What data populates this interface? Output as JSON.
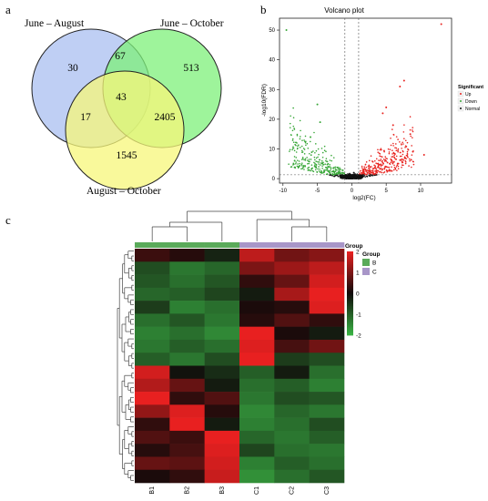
{
  "panels": {
    "a": "a",
    "b": "b",
    "c": "c"
  },
  "venn": {
    "sets": [
      {
        "label": "June – August",
        "color": "#a9bff0"
      },
      {
        "label": "June – October",
        "color": "#7ef07a"
      },
      {
        "label": "August – October",
        "color": "#f7f77a"
      }
    ],
    "regions": {
      "only_A": "30",
      "AB": "67",
      "only_B": "513",
      "ABC": "43",
      "AC": "17",
      "BC": "2405",
      "only_C": "1545"
    }
  },
  "volcano": {
    "title": "Volcano plot",
    "xlabel": "log2(FC)",
    "ylabel": "-log10(FDR)",
    "legend_title": "Significant",
    "legend_items": [
      {
        "label": "Up",
        "color": "#e8231f"
      },
      {
        "label": "Down",
        "color": "#37a637"
      },
      {
        "label": "Normal",
        "color": "#111111"
      }
    ]
  },
  "heatmap": {
    "group_legend_title": "Group",
    "group_legend_items": [
      {
        "label": "B",
        "color": "#5aaa5a"
      },
      {
        "label": "C",
        "color": "#a896c8"
      }
    ],
    "scale_title": "Group"
  },
  "chart_data": [
    {
      "type": "venn",
      "title": "",
      "sets": [
        "June – August",
        "June – October",
        "August – October"
      ],
      "regions": [
        {
          "sets": [
            "June – August"
          ],
          "value": 30
        },
        {
          "sets": [
            "June – October"
          ],
          "value": 513
        },
        {
          "sets": [
            "August – October"
          ],
          "value": 1545
        },
        {
          "sets": [
            "June – August",
            "June – October"
          ],
          "value": 67
        },
        {
          "sets": [
            "June – August",
            "August – October"
          ],
          "value": 17
        },
        {
          "sets": [
            "June – October",
            "August – October"
          ],
          "value": 2405
        },
        {
          "sets": [
            "June – August",
            "June – October",
            "August – October"
          ],
          "value": 43
        }
      ]
    },
    {
      "type": "scatter",
      "title": "Volcano plot",
      "xlabel": "log2(FC)",
      "ylabel": "-log10(FDR)",
      "xlim": [
        -10.5,
        14.5
      ],
      "ylim": [
        -1.5,
        54
      ],
      "xticks": [
        -10,
        -5,
        0,
        5,
        10
      ],
      "yticks": [
        0,
        10,
        20,
        30,
        40,
        50
      ],
      "vlines": [
        -1,
        1
      ],
      "hline": 1.3,
      "legend": {
        "title": "Significant",
        "placement": "right"
      },
      "series": [
        {
          "name": "Up",
          "points": [
            [
              13,
              52
            ],
            [
              7,
              31
            ],
            [
              7.6,
              33
            ],
            [
              5,
              24
            ],
            [
              4.5,
              22
            ],
            [
              6,
              18
            ],
            [
              8.5,
              15
            ],
            [
              10.5,
              8
            ]
          ]
        },
        {
          "name": "Down",
          "points": [
            [
              -9.5,
              50
            ],
            [
              -5,
              25
            ],
            [
              -4.6,
              19
            ],
            [
              -6,
              14
            ],
            [
              -8.3,
              6
            ]
          ]
        },
        {
          "name": "Normal",
          "points": [
            [
              0,
              0.5
            ],
            [
              0.3,
              2
            ],
            [
              -0.4,
              1.5
            ]
          ]
        }
      ]
    },
    {
      "type": "heatmap",
      "title": "",
      "columns": [
        "B1",
        "B2",
        "B3",
        "C1",
        "C2",
        "C3"
      ],
      "column_groups": [
        "B",
        "B",
        "B",
        "C",
        "C",
        "C"
      ],
      "scale_ticks": [
        2,
        1,
        0,
        -1,
        -2
      ],
      "scale_range": [
        -2,
        2
      ],
      "legend": {
        "title": "Group",
        "placement": "right"
      },
      "rows": [
        [
          0.4,
          0.2,
          -0.3,
          1.6,
          0.9,
          1.1
        ],
        [
          -0.8,
          -1.3,
          -1.1,
          1.0,
          1.3,
          1.6
        ],
        [
          -0.9,
          -1.2,
          -0.9,
          0.3,
          0.8,
          1.8
        ],
        [
          -1.1,
          -1.0,
          -0.7,
          -0.2,
          1.4,
          2.0
        ],
        [
          -0.6,
          -1.4,
          -1.2,
          0.1,
          0.2,
          1.9
        ],
        [
          -1.2,
          -0.9,
          -1.3,
          0.2,
          0.6,
          0.3
        ],
        [
          -1.4,
          -1.2,
          -1.5,
          2.0,
          0.1,
          -0.2
        ],
        [
          -1.3,
          -1.0,
          -1.2,
          1.9,
          0.5,
          0.9
        ],
        [
          -1.0,
          -1.3,
          -0.8,
          2.0,
          -0.6,
          -0.8
        ],
        [
          1.8,
          -0.1,
          -0.4,
          -1.0,
          -0.2,
          -1.2
        ],
        [
          1.5,
          0.8,
          -0.2,
          -1.2,
          -1.0,
          -1.4
        ],
        [
          2.0,
          0.3,
          0.6,
          -1.3,
          -0.8,
          -0.9
        ],
        [
          1.2,
          1.9,
          0.2,
          -1.5,
          -1.1,
          -1.3
        ],
        [
          0.3,
          2.0,
          -0.2,
          -1.4,
          -1.2,
          -0.8
        ],
        [
          0.6,
          0.4,
          2.0,
          -1.1,
          -1.3,
          -1.0
        ],
        [
          0.2,
          0.5,
          1.9,
          -0.7,
          -1.2,
          -1.3
        ],
        [
          0.8,
          0.7,
          1.8,
          -1.4,
          -1.0,
          -1.2
        ],
        [
          0.1,
          0.3,
          1.7,
          -1.6,
          -1.2,
          -0.9
        ]
      ]
    }
  ]
}
